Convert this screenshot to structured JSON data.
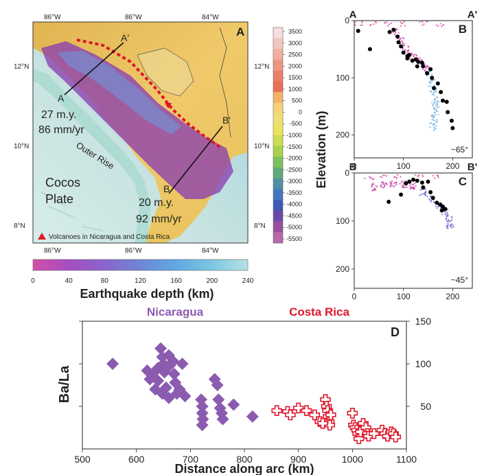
{
  "chart_data": [
    {
      "panel": "A",
      "type": "map",
      "panel_label": "A",
      "lon_labels_top": [
        "86°W",
        "86°W",
        "84°W"
      ],
      "lon_labels_bottom": [
        "86°W",
        "86°W",
        "84°W"
      ],
      "lat_labels": [
        "12°N",
        "10°N",
        "8°N"
      ],
      "lat_labels_right": [
        "12°N",
        "10°N",
        "8°N"
      ],
      "section_labels": {
        "a": "A",
        "a_prime": "A'",
        "b": "B",
        "b_prime": "B'"
      },
      "annotations": {
        "age_a": "27 m.y.",
        "rate_a": "86 mm/yr",
        "age_b": "20 m.y.",
        "rate_b": "92 mm/yr",
        "outer_rise": "Outer Rise",
        "plate_1": "Cocos",
        "plate_2": "Plate",
        "volcano_legend": "Volcanoes in Nicaragua and Costa Rica"
      },
      "elevation_colorbar": {
        "ticks": [
          3500,
          3000,
          2500,
          2000,
          1500,
          1000,
          500,
          0,
          -500,
          -1000,
          -1500,
          -2000,
          -2500,
          -3000,
          -3500,
          -4000,
          -4500,
          -5000,
          -5500
        ],
        "colors": [
          "#f6dede",
          "#f3c6c0",
          "#f0aea0",
          "#ec9680",
          "#e87f68",
          "#e86e58",
          "#f4b36a",
          "#f6d27a",
          "#f1de72",
          "#e9e35c",
          "#cddd4f",
          "#a9d14c",
          "#7fc05e",
          "#5eaa78",
          "#4f8fa7",
          "#4476c0",
          "#3f5ab6",
          "#6a4aa6",
          "#9a4f9c",
          "#b96aa6"
        ]
      },
      "depth_colorbar": {
        "title": "Earthquake depth (km)",
        "ticks": [
          0,
          40,
          80,
          120,
          160,
          200,
          240
        ],
        "colors": [
          "#d44fa8",
          "#a64ec0",
          "#8a64cc",
          "#6f86d6",
          "#5fa8e2",
          "#7cc6e0",
          "#b7e0e4"
        ]
      },
      "volcano_color": "#e0162a"
    },
    {
      "panel": "B",
      "type": "scatter",
      "panel_label": "B",
      "section_left": "A",
      "section_right": "A'",
      "ylabel": "Elevation (m)",
      "x_ticks": [
        0,
        100,
        200
      ],
      "y_ticks": [
        0,
        100,
        200
      ],
      "xlim": [
        0,
        240
      ],
      "ylim": [
        0,
        240
      ],
      "dip": "~65°",
      "black_points": [
        [
          8,
          18
        ],
        [
          32,
          50
        ],
        [
          72,
          20
        ],
        [
          80,
          16
        ],
        [
          88,
          28
        ],
        [
          90,
          38
        ],
        [
          95,
          45
        ],
        [
          100,
          56
        ],
        [
          108,
          62
        ],
        [
          112,
          60
        ],
        [
          118,
          70
        ],
        [
          125,
          68
        ],
        [
          130,
          72
        ],
        [
          138,
          74
        ],
        [
          140,
          80
        ],
        [
          148,
          92
        ],
        [
          155,
          85
        ],
        [
          158,
          100
        ],
        [
          162,
          118
        ],
        [
          170,
          110
        ],
        [
          176,
          125
        ],
        [
          180,
          140
        ],
        [
          188,
          142
        ],
        [
          190,
          160
        ],
        [
          198,
          175
        ],
        [
          200,
          188
        ],
        [
          108,
          66
        ],
        [
          128,
          80
        ]
      ],
      "slab_color_shallow": "#c83fa6",
      "slab_color_deep": "#6aaee2"
    },
    {
      "panel": "C",
      "type": "scatter",
      "panel_label": "C",
      "section_left": "B",
      "section_right": "B'",
      "x_ticks": [
        0,
        100,
        200
      ],
      "y_ticks": [
        0,
        100,
        200
      ],
      "xlim": [
        0,
        240
      ],
      "ylim": [
        0,
        240
      ],
      "dip": "~45°",
      "black_points": [
        [
          70,
          60
        ],
        [
          95,
          45
        ],
        [
          105,
          22
        ],
        [
          112,
          18
        ],
        [
          120,
          14
        ],
        [
          128,
          16
        ],
        [
          138,
          20
        ],
        [
          140,
          30
        ],
        [
          150,
          18
        ],
        [
          155,
          40
        ],
        [
          160,
          52
        ],
        [
          168,
          62
        ],
        [
          175,
          66
        ],
        [
          180,
          70
        ],
        [
          185,
          75
        ],
        [
          178,
          78
        ]
      ],
      "slab_color_shallow": "#c83fa6",
      "slab_color_deep": "#6a6ad0"
    },
    {
      "panel": "D",
      "type": "scatter",
      "panel_label": "D",
      "xlabel": "Distance along arc (km)",
      "ylabel": "Ba/La",
      "xlim": [
        500,
        1100
      ],
      "ylim": [
        0,
        150
      ],
      "x_ticks": [
        500,
        600,
        700,
        800,
        900,
        1000,
        1100
      ],
      "y_ticks": [
        50,
        100,
        150
      ],
      "series": [
        {
          "name": "Nicaragua",
          "color": "#8b5bb0",
          "marker": "filled-diamond",
          "points": [
            [
              556,
              100
            ],
            [
              620,
              92
            ],
            [
              625,
              82
            ],
            [
              630,
              88
            ],
            [
              640,
              95
            ],
            [
              640,
              80
            ],
            [
              645,
              118
            ],
            [
              648,
              108
            ],
            [
              650,
              100
            ],
            [
              652,
              90
            ],
            [
              655,
              72
            ],
            [
              660,
              110
            ],
            [
              662,
              98
            ],
            [
              668,
              103
            ],
            [
              670,
              88
            ],
            [
              672,
              78
            ],
            [
              675,
              65
            ],
            [
              680,
              70
            ],
            [
              685,
              100
            ],
            [
              690,
              62
            ],
            [
              660,
              60
            ],
            [
              648,
              65
            ],
            [
              635,
              70
            ],
            [
              720,
              58
            ],
            [
              722,
              50
            ],
            [
              722,
              42
            ],
            [
              723,
              35
            ],
            [
              722,
              28
            ],
            [
              745,
              82
            ],
            [
              750,
              75
            ],
            [
              752,
              58
            ],
            [
              755,
              48
            ],
            [
              758,
              42
            ],
            [
              760,
              35
            ],
            [
              780,
              52
            ],
            [
              815,
              38
            ]
          ]
        },
        {
          "name": "Costa Rica",
          "color": "#e0162a",
          "marker": "open-cross",
          "points": [
            [
              860,
              45
            ],
            [
              880,
              44
            ],
            [
              885,
              40
            ],
            [
              900,
              48
            ],
            [
              915,
              45
            ],
            [
              930,
              40
            ],
            [
              940,
              32
            ],
            [
              950,
              58
            ],
            [
              952,
              50
            ],
            [
              954,
              45
            ],
            [
              955,
              38
            ],
            [
              957,
              32
            ],
            [
              958,
              28
            ],
            [
              945,
              30
            ],
            [
              960,
              40
            ],
            [
              1000,
              42
            ],
            [
              1002,
              28
            ],
            [
              1005,
              25
            ],
            [
              1008,
              22
            ],
            [
              1010,
              18
            ],
            [
              1012,
              12
            ],
            [
              1015,
              20
            ],
            [
              1020,
              30
            ],
            [
              1025,
              25
            ],
            [
              1028,
              18
            ],
            [
              1030,
              15
            ],
            [
              1040,
              18
            ],
            [
              1055,
              22
            ],
            [
              1060,
              18
            ],
            [
              1065,
              15
            ],
            [
              1072,
              20
            ],
            [
              1076,
              18
            ],
            [
              1080,
              14
            ]
          ]
        }
      ]
    }
  ]
}
